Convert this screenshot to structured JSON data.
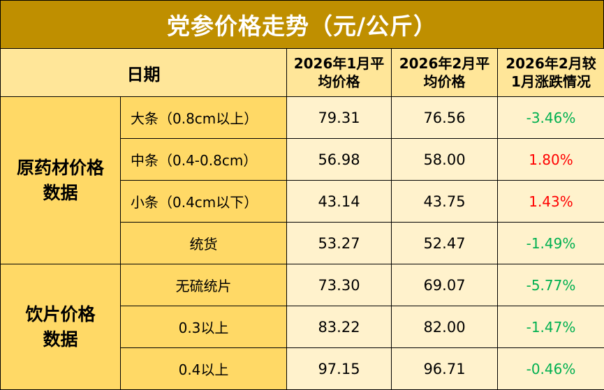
{
  "title": "党参价格走势（元/公斤）",
  "header": {
    "date": "日期",
    "jan_line1": "2026年1月平",
    "jan_line2": "均价格",
    "feb_line1": "2026年2月平",
    "feb_line2": "均价格",
    "chg_line1": "2026年2月较",
    "chg_line2": "1月涨跌情况"
  },
  "groups": [
    {
      "label_line1": "原药材价格",
      "label_line2": "数据",
      "rows": [
        {
          "spec": "大条（0.8cm以上）",
          "jan": "79.31",
          "feb": "76.56",
          "change": "-3.46%",
          "direction": "down"
        },
        {
          "spec": "中条（0.4-0.8cm）",
          "jan": "56.98",
          "feb": "58.00",
          "change": "1.80%",
          "direction": "up"
        },
        {
          "spec": "小条（0.4cm以下）",
          "jan": "43.14",
          "feb": "43.75",
          "change": "1.43%",
          "direction": "up"
        },
        {
          "spec": "统货",
          "jan": "53.27",
          "feb": "52.47",
          "change": "-1.49%",
          "direction": "down"
        }
      ]
    },
    {
      "label_line1": "饮片价格",
      "label_line2": "数据",
      "rows": [
        {
          "spec": "无硫统片",
          "jan": "73.30",
          "feb": "69.07",
          "change": "-5.77%",
          "direction": "down"
        },
        {
          "spec": "0.3以上",
          "jan": "83.22",
          "feb": "82.00",
          "change": "-1.47%",
          "direction": "down"
        },
        {
          "spec": "0.4以上",
          "jan": "97.15",
          "feb": "96.71",
          "change": "-0.46%",
          "direction": "down"
        }
      ]
    }
  ],
  "colors": {
    "title_bg": "#bf8f00",
    "header_bg": "#ffe699",
    "label_bg": "#ffd966",
    "value_bg": "#fff2cc",
    "down": "#00b050",
    "up": "#ff0000"
  }
}
